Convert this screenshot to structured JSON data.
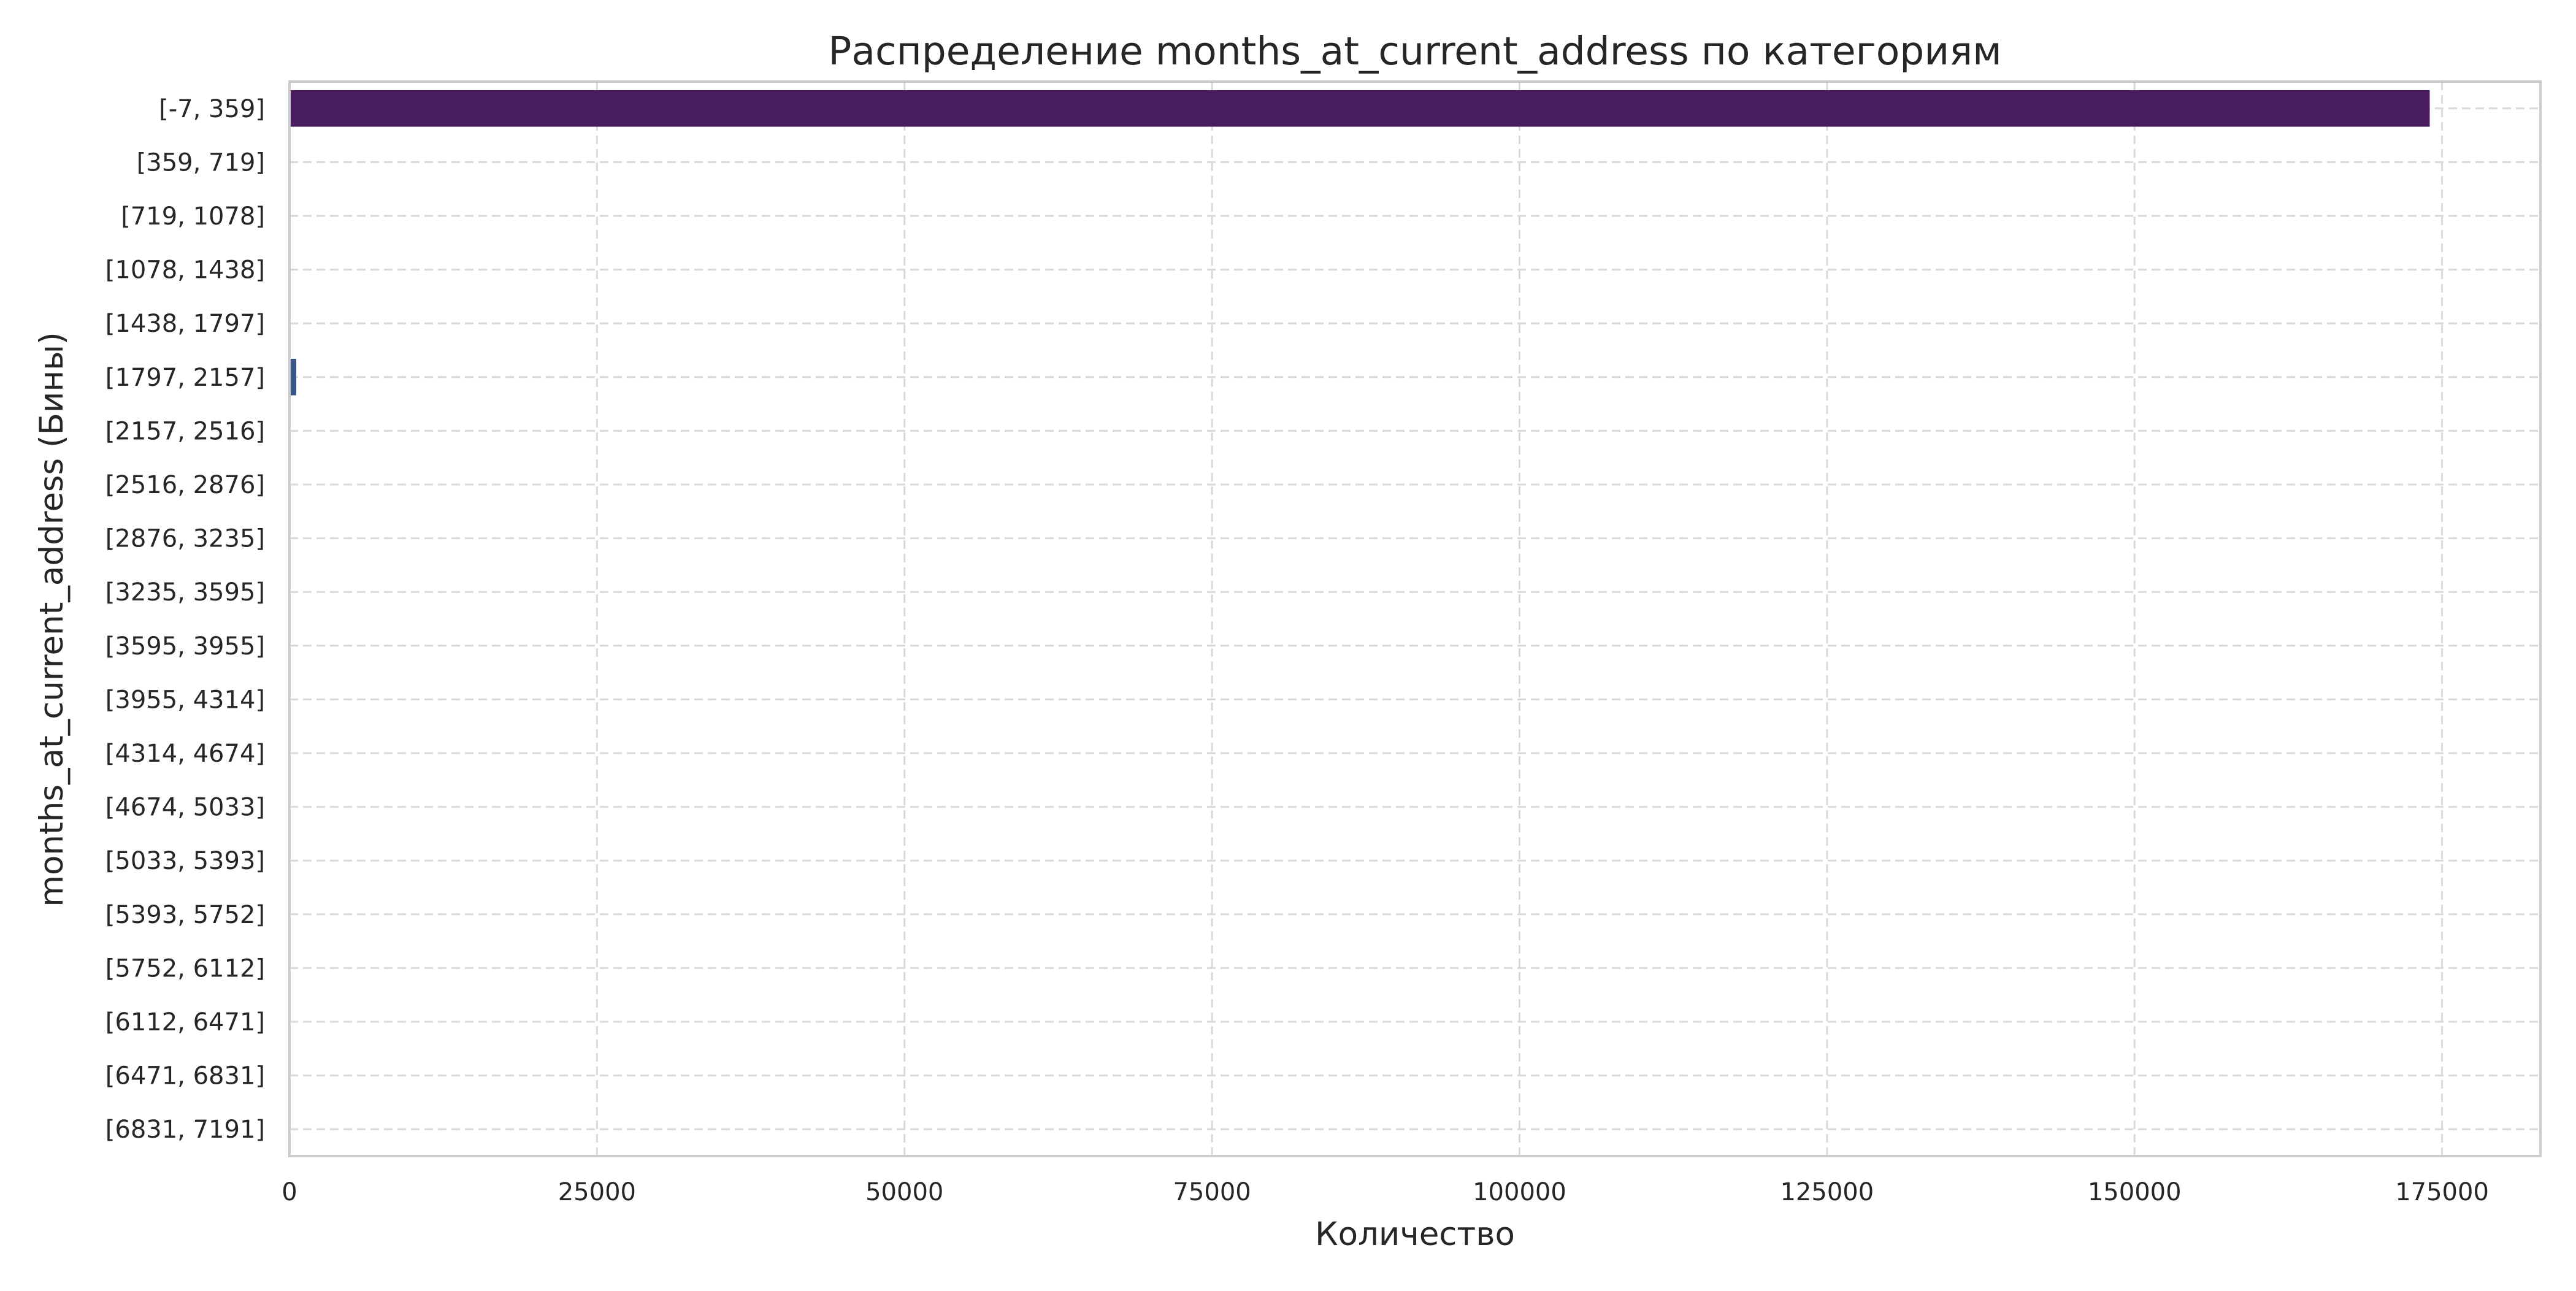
{
  "chart_data": {
    "type": "bar",
    "orientation": "horizontal",
    "title": "Распределение months_at_current_address по категориям",
    "xlabel": "Количество",
    "ylabel": "months_at_current_address (Бины)",
    "categories": [
      "[-7, 359]",
      "[359, 719]",
      "[719, 1078]",
      "[1078, 1438]",
      "[1438, 1797]",
      "[1797, 2157]",
      "[2157, 2516]",
      "[2516, 2876]",
      "[2876, 3235]",
      "[3235, 3595]",
      "[3595, 3955]",
      "[3955, 4314]",
      "[4314, 4674]",
      "[4674, 5033]",
      "[5033, 5393]",
      "[5393, 5752]",
      "[5752, 6112]",
      "[6112, 6471]",
      "[6471, 6831]",
      "[6831, 7191]"
    ],
    "values": [
      174000,
      0,
      0,
      0,
      0,
      550,
      0,
      0,
      0,
      0,
      0,
      0,
      0,
      0,
      0,
      0,
      0,
      0,
      0,
      0
    ],
    "xlim": [
      0,
      183000
    ],
    "xticks": [
      0,
      25000,
      50000,
      75000,
      100000,
      125000,
      150000,
      175000
    ],
    "grid": true,
    "colors": {
      "bar_palette_start": "#481c5e",
      "bar_palette_mid": "#3b5787",
      "grid": "#d9d9d9",
      "frame": "#cccccc"
    }
  }
}
